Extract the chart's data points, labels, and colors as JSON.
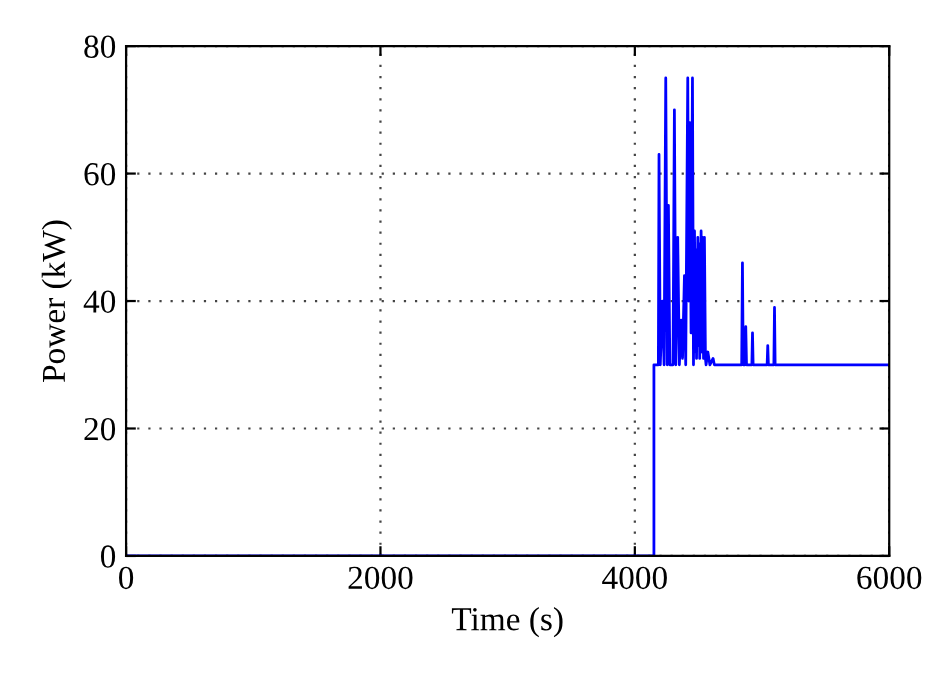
{
  "chart_data": {
    "type": "line",
    "xlabel": "Time (s)",
    "ylabel": "Power (kW)",
    "xlim": [
      0,
      6000
    ],
    "ylim": [
      0,
      80
    ],
    "xticks": [
      0,
      2000,
      4000,
      6000
    ],
    "yticks": [
      0,
      20,
      40,
      60,
      80
    ],
    "grid": true,
    "line_style": "solid",
    "marker": "none",
    "series": [
      {
        "color": "#0000ff",
        "x": [
          0,
          4150,
          4150,
          4185,
          4190,
          4200,
          4217,
          4230,
          4243,
          4255,
          4264,
          4275,
          4300,
          4311,
          4322,
          4337,
          4350,
          4364,
          4375,
          4390,
          4400,
          4416,
          4424,
          4432,
          4442,
          4453,
          4461,
          4469,
          4477,
          4481,
          4485,
          4495,
          4500,
          4505,
          4510,
          4521,
          4527,
          4533,
          4540,
          4547,
          4555,
          4560,
          4574,
          4590,
          4615,
          4625,
          4840,
          4846,
          4852,
          4866,
          4872,
          4878,
          4920,
          4925,
          4930,
          5040,
          5045,
          5050,
          5093,
          5098,
          5103,
          6000
        ],
        "values": [
          0,
          0,
          30,
          30,
          63,
          30,
          40,
          30,
          75,
          30,
          55,
          30,
          30,
          70,
          30,
          50,
          30,
          37,
          31,
          44,
          30,
          75,
          40,
          68,
          35,
          75,
          30,
          51,
          32,
          48,
          31,
          50,
          33,
          49,
          31,
          51,
          32,
          50,
          31,
          50,
          31,
          30,
          32,
          30,
          31,
          30,
          30,
          46,
          30,
          30,
          36,
          30,
          30,
          35,
          30,
          30,
          33,
          30,
          30,
          39,
          30,
          30
        ]
      }
    ]
  }
}
